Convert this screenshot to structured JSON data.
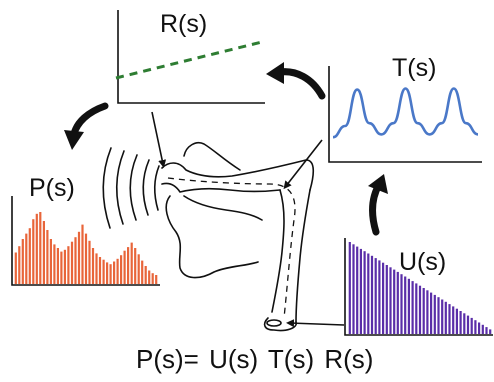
{
  "labels": {
    "radiation": "R(s)",
    "transfer": "T(s)",
    "output": "P(s)",
    "source": "U(s)"
  },
  "equation": "P(s)= U(s)  T(s)  R(s)",
  "colors": {
    "radiation_line": "#2e7d32",
    "transfer_curve": "#4a78c8",
    "output_bars": "#e8653a",
    "source_bars": "#5a2ea8",
    "ink": "#111111"
  },
  "chart_data": [
    {
      "type": "line",
      "panel": "radiation",
      "line_style": "dashed",
      "values": [
        0.0,
        1.0
      ]
    },
    {
      "type": "line",
      "panel": "transfer",
      "peaks": 3,
      "values": [
        0.05,
        0.25,
        0.9,
        0.3,
        0.1,
        0.3,
        0.92,
        0.3,
        0.1,
        0.3,
        0.92,
        0.3,
        0.1
      ]
    },
    {
      "type": "bar",
      "panel": "output",
      "values": [
        0.35,
        0.42,
        0.5,
        0.56,
        0.62,
        0.72,
        0.78,
        0.8,
        0.7,
        0.6,
        0.5,
        0.44,
        0.4,
        0.36,
        0.38,
        0.42,
        0.47,
        0.52,
        0.58,
        0.66,
        0.56,
        0.48,
        0.4,
        0.34,
        0.3,
        0.27,
        0.24,
        0.22,
        0.25,
        0.28,
        0.32,
        0.37,
        0.41,
        0.46,
        0.4,
        0.33,
        0.26,
        0.2,
        0.15,
        0.12,
        0.1
      ]
    },
    {
      "type": "bar",
      "panel": "source",
      "values": [
        1.0,
        0.975,
        0.95,
        0.925,
        0.9,
        0.875,
        0.85,
        0.825,
        0.8,
        0.775,
        0.75,
        0.725,
        0.7,
        0.675,
        0.65,
        0.625,
        0.6,
        0.575,
        0.55,
        0.525,
        0.5,
        0.475,
        0.45,
        0.425,
        0.4,
        0.375,
        0.35,
        0.325,
        0.3,
        0.275,
        0.25,
        0.225,
        0.2,
        0.175,
        0.15,
        0.125,
        0.1,
        0.075,
        0.05
      ]
    }
  ]
}
